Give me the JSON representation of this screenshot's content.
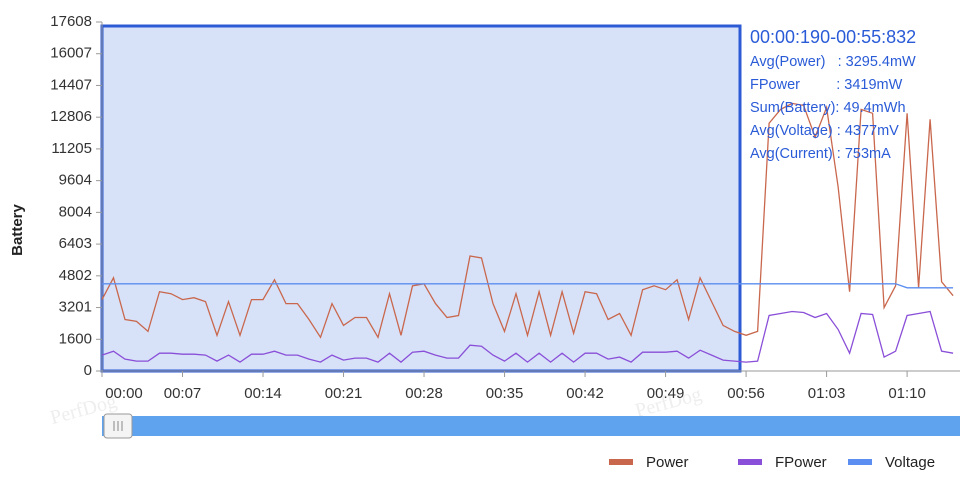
{
  "chart_data": {
    "type": "line",
    "y_label": "Battery",
    "x": [
      0,
      1,
      2,
      3,
      4,
      5,
      6,
      7,
      8,
      9,
      10,
      11,
      12,
      13,
      14,
      15,
      16,
      17,
      18,
      19,
      20,
      21,
      22,
      23,
      24,
      25,
      26,
      27,
      28,
      29,
      30,
      31,
      32,
      33,
      34,
      35,
      36,
      37,
      38,
      39,
      40,
      41,
      42,
      43,
      44,
      45,
      46,
      47,
      48,
      49,
      50,
      51,
      52,
      53,
      54,
      55,
      56,
      57,
      58,
      59,
      60,
      61,
      62,
      63,
      64,
      65,
      66,
      67,
      68,
      69,
      70,
      71,
      72,
      73,
      74
    ],
    "xlim": [
      0,
      74.6
    ],
    "xticks": [
      {
        "value": 0,
        "label": "00:00"
      },
      {
        "value": 7,
        "label": "00:07"
      },
      {
        "value": 14,
        "label": "00:14"
      },
      {
        "value": 21,
        "label": "00:21"
      },
      {
        "value": 28,
        "label": "00:28"
      },
      {
        "value": 35,
        "label": "00:35"
      },
      {
        "value": 42,
        "label": "00:42"
      },
      {
        "value": 49,
        "label": "00:49"
      },
      {
        "value": 56,
        "label": "00:56"
      },
      {
        "value": 63,
        "label": "01:03"
      },
      {
        "value": 70,
        "label": "01:10"
      }
    ],
    "ylim": [
      0,
      17608
    ],
    "yticks": [
      0,
      1600,
      3201,
      4802,
      6403,
      8004,
      9604,
      11205,
      12806,
      14407,
      16007,
      17608
    ],
    "series": [
      {
        "name": "Power",
        "color": "#c9674d",
        "values": [
          3600,
          4700,
          2600,
          2500,
          2000,
          4000,
          3900,
          3600,
          3700,
          3500,
          1800,
          3500,
          1800,
          3600,
          3600,
          4600,
          3400,
          3400,
          2600,
          1700,
          3400,
          2300,
          2700,
          2700,
          1700,
          3900,
          1800,
          4300,
          4400,
          3400,
          2700,
          2800,
          5800,
          5700,
          3400,
          2000,
          3900,
          1800,
          4000,
          1800,
          4000,
          1900,
          4000,
          3900,
          2600,
          2900,
          1800,
          4100,
          4300,
          4100,
          4600,
          2600,
          4700,
          3500,
          2300,
          2000,
          1800,
          2000,
          12500,
          13200,
          13500,
          13400,
          11800,
          13300,
          9300,
          4000,
          13200,
          13000,
          3200,
          4300,
          13000,
          4200,
          12700,
          4500,
          3800
        ]
      },
      {
        "name": "FPower",
        "color": "#8a4fd8",
        "values": [
          800,
          1000,
          600,
          500,
          500,
          900,
          900,
          850,
          850,
          800,
          500,
          800,
          450,
          850,
          850,
          1000,
          800,
          800,
          600,
          450,
          800,
          550,
          650,
          650,
          450,
          900,
          450,
          950,
          1000,
          800,
          650,
          650,
          1300,
          1250,
          800,
          500,
          900,
          450,
          900,
          450,
          900,
          450,
          900,
          900,
          600,
          700,
          450,
          950,
          950,
          950,
          1000,
          650,
          1050,
          800,
          550,
          500,
          450,
          500,
          2800,
          2900,
          3000,
          2950,
          2700,
          2900,
          2100,
          900,
          2900,
          2850,
          700,
          1000,
          2800,
          2900,
          3000,
          1000,
          900
        ]
      },
      {
        "name": "Voltage",
        "color": "#5b8ef0",
        "values": [
          4400,
          4400,
          4400,
          4400,
          4400,
          4400,
          4400,
          4400,
          4400,
          4400,
          4400,
          4400,
          4400,
          4400,
          4400,
          4400,
          4400,
          4400,
          4400,
          4400,
          4400,
          4400,
          4400,
          4400,
          4400,
          4400,
          4400,
          4400,
          4400,
          4400,
          4400,
          4400,
          4400,
          4400,
          4400,
          4400,
          4400,
          4400,
          4400,
          4400,
          4400,
          4400,
          4400,
          4400,
          4400,
          4400,
          4400,
          4400,
          4400,
          4400,
          4400,
          4400,
          4400,
          4400,
          4400,
          4400,
          4400,
          4400,
          4400,
          4400,
          4400,
          4400,
          4400,
          4400,
          4400,
          4400,
          4400,
          4400,
          4400,
          4400,
          4200,
          4200,
          4200,
          4200,
          4200
        ]
      }
    ],
    "info": {
      "range": "00:00:190-00:55:832",
      "lines": [
        "Avg(Power)   : 3295.4mW",
        "FPower         : 3419mW",
        "Sum(Battery): 49.4mWh",
        "Avg(Voltage) : 4377mV",
        "Avg(Current) : 753mA"
      ]
    },
    "watermark": "PerfDog"
  }
}
